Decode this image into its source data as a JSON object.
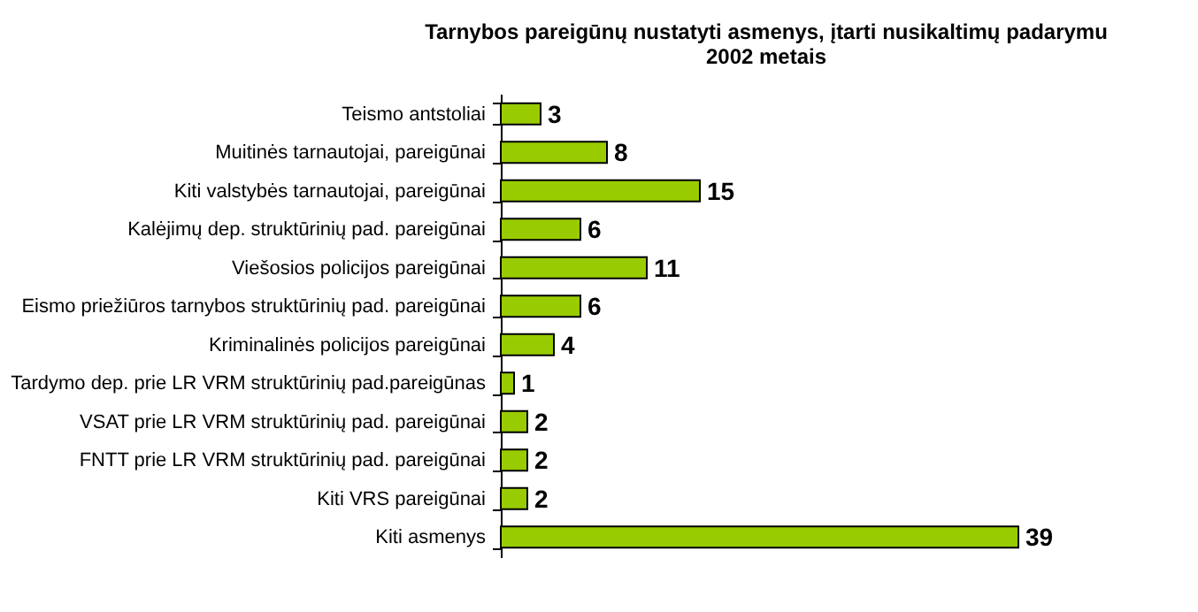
{
  "chart_data": {
    "type": "bar",
    "orientation": "horizontal",
    "title": "Tarnybos pareigūnų nustatyti asmenys, įtarti nusikaltimų padarymu\n2002 metais",
    "categories": [
      "Teismo antstoliai",
      "Muitinės  tarnautojai, pareigūnai",
      "Kiti valstybės tarnautojai, pareigūnai",
      "Kalėjimų dep. struktūrinių pad. pareigūnai",
      "Viešosios policijos pareigūnai",
      "Eismo priežiūros tarnybos struktūrinių pad.  pareigūnai",
      "Kriminalinės policijos  pareigūnai",
      "Tardymo dep. prie LR VRM struktūrinių pad.pareigūnas",
      "VSAT prie LR VRM struktūrinių pad. pareigūnai",
      "FNTT prie LR VRM struktūrinių pad. pareigūnai",
      "Kiti VRS pareigūnai",
      "Kiti asmenys"
    ],
    "values": [
      3,
      8,
      15,
      6,
      11,
      6,
      4,
      1,
      2,
      2,
      2,
      39
    ],
    "color": "#99cc00",
    "data_labels": true,
    "tick_labels": "y"
  }
}
